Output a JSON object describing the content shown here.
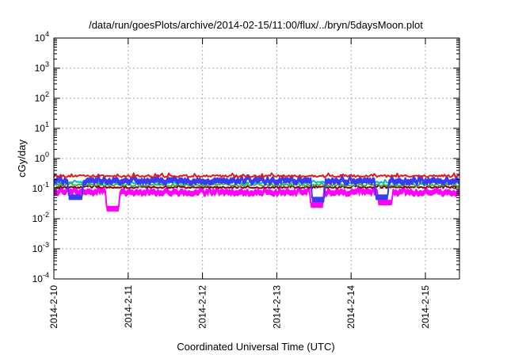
{
  "chart_data": {
    "type": "area",
    "title": "/data/run/goesPlots/archive/2014-02-15/11:00/flux/../bryn/5daysMoon.plot",
    "xlabel": "Coordinated Universal Time (UTC)",
    "ylabel": "cGy/day",
    "y_scale": "log",
    "ylim": [
      0.0001,
      10000
    ],
    "xlim": [
      "2014-02-10T00:00",
      "2014-02-15T11:00"
    ],
    "x_ticks": [
      "2014-2-10",
      "2014-2-11",
      "2014-2-12",
      "2014-2-13",
      "2014-2-14",
      "2014-2-15"
    ],
    "y_ticks": [
      {
        "base": "10",
        "exp": "4"
      },
      {
        "base": "10",
        "exp": "3"
      },
      {
        "base": "10",
        "exp": "2"
      },
      {
        "base": "10",
        "exp": "1"
      },
      {
        "base": "10",
        "exp": "0"
      },
      {
        "base": "10",
        "exp": "-1"
      },
      {
        "base": "10",
        "exp": "-2"
      },
      {
        "base": "10",
        "exp": "-3"
      },
      {
        "base": "10",
        "exp": "-4"
      }
    ],
    "grid": true,
    "series": [
      {
        "color": "#e41a1c",
        "level": 0.26,
        "spread": 0.09,
        "dips": [],
        "fill": false
      },
      {
        "color": "#3b3bef",
        "level": 0.2,
        "spread": 0.14,
        "dips": [
          [
            "2014-02-10T07:00",
            0.06
          ],
          [
            "2014-02-13T13:30",
            0.05
          ],
          [
            "2014-02-14T10:00",
            0.06
          ]
        ],
        "fill": true
      },
      {
        "color": "#00bfbf",
        "level": 0.16,
        "spread": 0.08,
        "dips": [],
        "fill": false
      },
      {
        "color": "#3cb44b",
        "level": 0.13,
        "spread": 0.08,
        "dips": [],
        "fill": false
      },
      {
        "color": "#8b0000",
        "level": 0.11,
        "spread": 0.07,
        "dips": [],
        "fill": false
      },
      {
        "color": "#ff00ff",
        "level": 0.085,
        "spread": 0.12,
        "dips": [
          [
            "2014-02-10T19:00",
            0.025
          ],
          [
            "2014-02-13T13:00",
            0.033
          ],
          [
            "2014-02-14T11:00",
            0.04
          ]
        ],
        "fill": true
      }
    ]
  }
}
